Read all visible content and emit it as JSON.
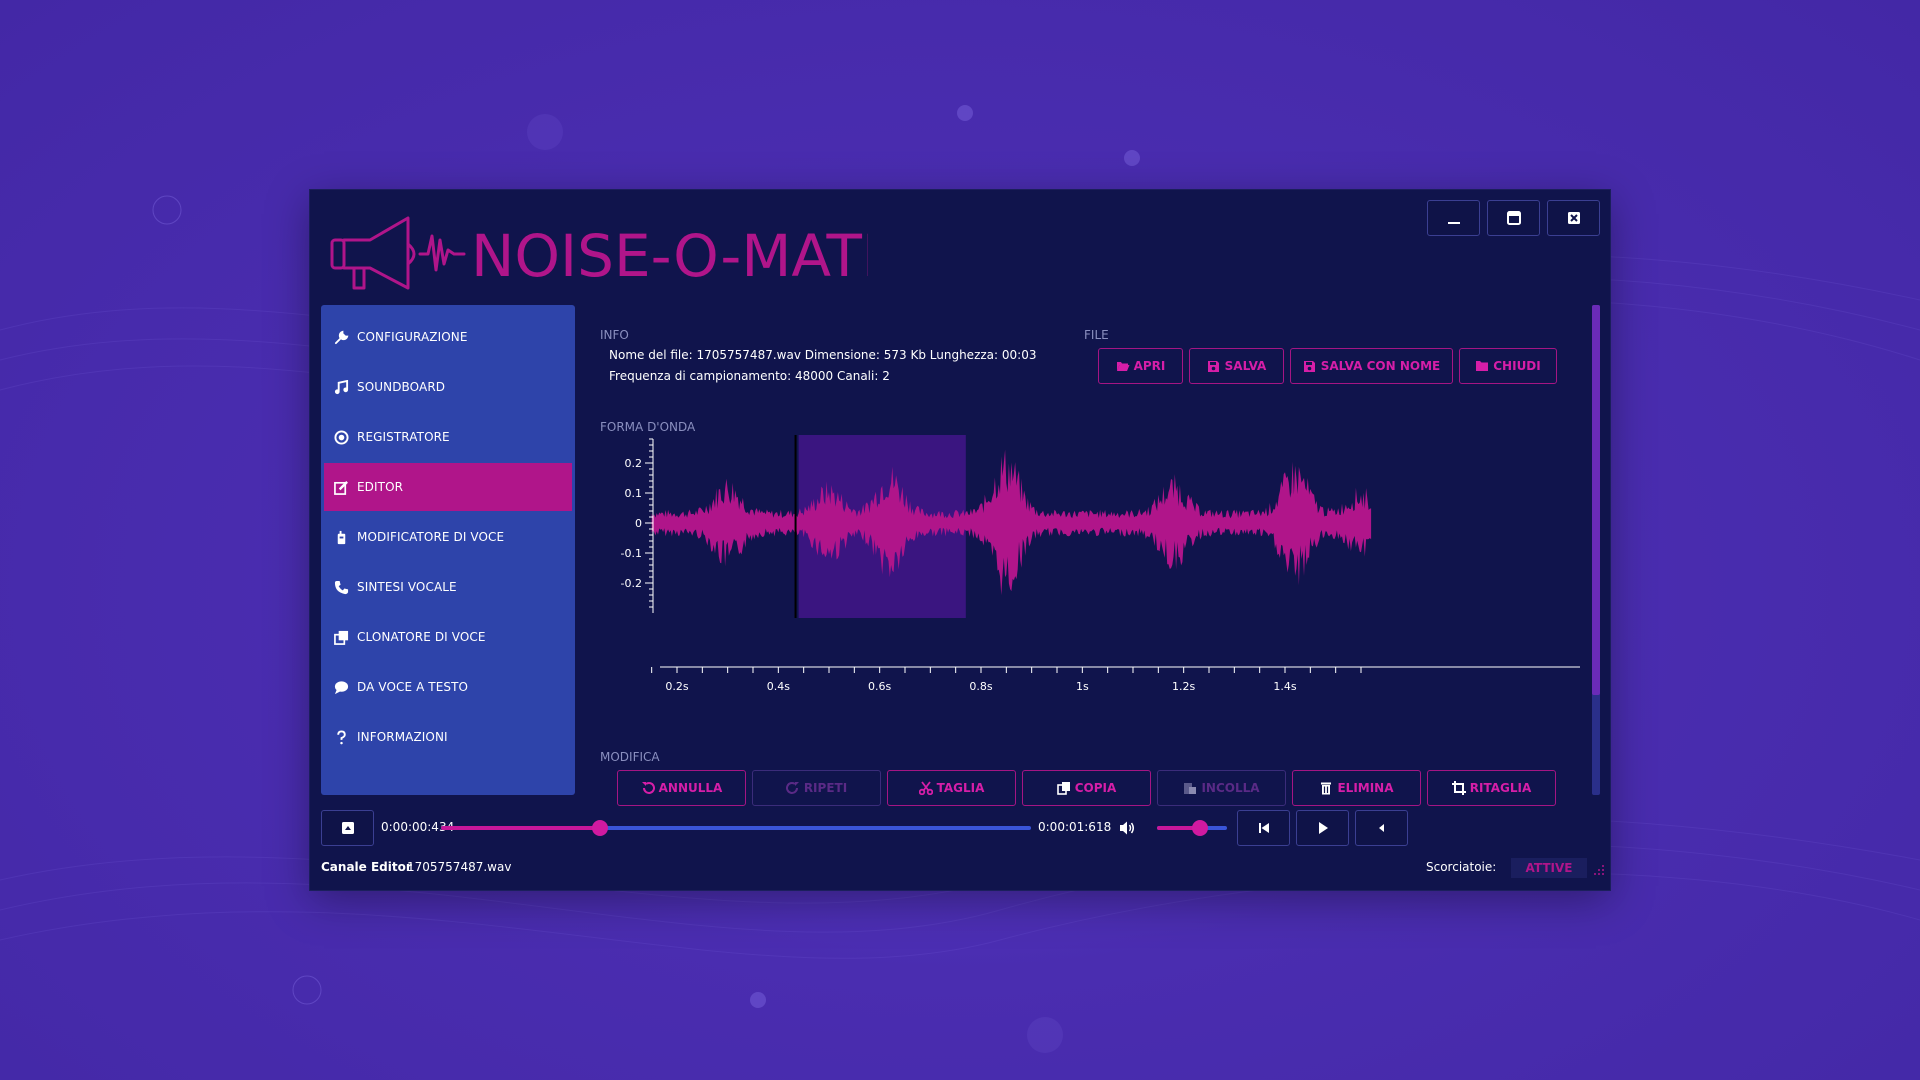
{
  "app": {
    "title": "NOISE-O-MATIC"
  },
  "colors": {
    "accent": "#b0158a",
    "accent_text": "#d61ea8",
    "sidebar": "#2e44aa",
    "window": "#10144c"
  },
  "window_controls": [
    {
      "name": "minimize",
      "icon": "minimize-icon"
    },
    {
      "name": "maximize",
      "icon": "maximize-icon"
    },
    {
      "name": "close",
      "icon": "close-icon"
    }
  ],
  "sidebar": {
    "items": [
      {
        "label": "CONFIGURAZIONE",
        "icon": "wrench-icon",
        "active": false
      },
      {
        "label": "SOUNDBOARD",
        "icon": "music-icon",
        "active": false
      },
      {
        "label": "REGISTRATORE",
        "icon": "record-icon",
        "active": false
      },
      {
        "label": "EDITOR",
        "icon": "edit-icon",
        "active": true
      },
      {
        "label": "MODIFICATORE DI VOCE",
        "icon": "walkie-talkie-icon",
        "active": false
      },
      {
        "label": "SINTESI VOCALE",
        "icon": "phone-icon",
        "active": false
      },
      {
        "label": "CLONATORE DI VOCE",
        "icon": "clone-icon",
        "active": false
      },
      {
        "label": "DA VOCE A TESTO",
        "icon": "chat-icon",
        "active": false
      },
      {
        "label": "INFORMAZIONI",
        "icon": "question-icon",
        "active": false
      }
    ]
  },
  "info": {
    "label": "INFO",
    "line1": "Nome del file: 1705757487.wav Dimensione: 573 Kb Lunghezza: 00:03",
    "line2": "Frequenza di campionamento: 48000 Canali: 2"
  },
  "file": {
    "label": "FILE",
    "buttons": [
      {
        "label": "APRI",
        "icon": "folder-open-icon"
      },
      {
        "label": "SALVA",
        "icon": "save-icon"
      },
      {
        "label": "SALVA CON NOME",
        "icon": "save-as-icon"
      },
      {
        "label": "CHIUDI",
        "icon": "folder-icon"
      }
    ]
  },
  "waveform": {
    "label": "FORMA D'ONDA",
    "y_ticks": [
      "0.2",
      "0.1",
      "0",
      "-0.1",
      "-0.2"
    ],
    "x_ticks": [
      "0.2s",
      "0.4s",
      "0.6s",
      "0.8s",
      "1s",
      "1.2s",
      "1.4s"
    ],
    "selection_start_s": 0.44,
    "selection_end_s": 0.77,
    "cursor_s": 0.434
  },
  "modifica": {
    "label": "MODIFICA",
    "buttons": [
      {
        "label": "ANNULLA",
        "icon": "undo-icon",
        "disabled": false
      },
      {
        "label": "RIPETI",
        "icon": "redo-icon",
        "disabled": true
      },
      {
        "label": "TAGLIA",
        "icon": "scissors-icon",
        "disabled": false
      },
      {
        "label": "COPIA",
        "icon": "copy-icon",
        "disabled": false
      },
      {
        "label": "INCOLLA",
        "icon": "paste-icon",
        "disabled": true
      },
      {
        "label": "ELIMINA",
        "icon": "trash-icon",
        "disabled": false
      },
      {
        "label": "RITAGLIA",
        "icon": "crop-icon",
        "disabled": false
      }
    ]
  },
  "transport": {
    "current_time": "0:00:00:434",
    "total_time": "0:00:01:618",
    "position_fraction": 0.27,
    "volume_fraction": 0.62
  },
  "status": {
    "channel_label": "Canale Editor",
    "file_name": "1705757487.wav",
    "shortcuts_label": "Scorciatoie:",
    "shortcuts_value": "ATTIVE"
  }
}
